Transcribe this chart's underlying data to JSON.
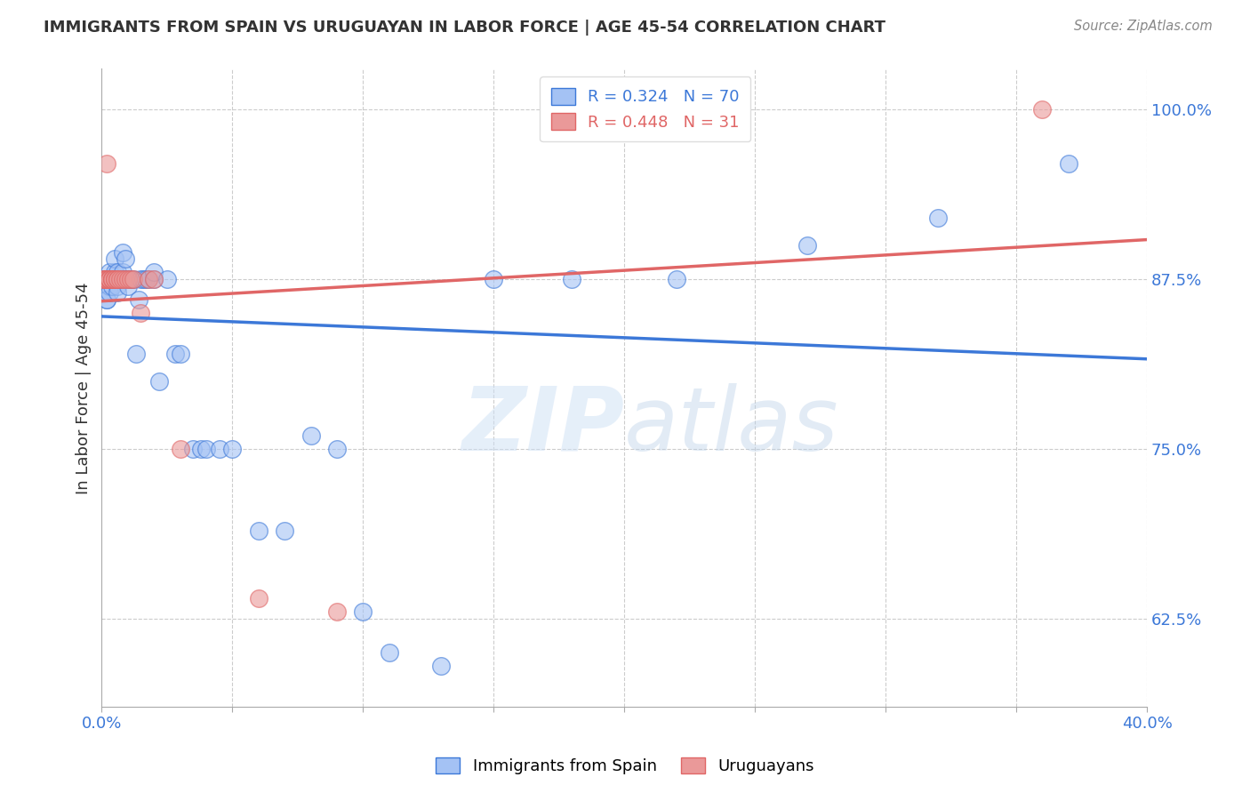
{
  "title": "IMMIGRANTS FROM SPAIN VS URUGUAYAN IN LABOR FORCE | AGE 45-54 CORRELATION CHART",
  "source": "Source: ZipAtlas.com",
  "ylabel": "In Labor Force | Age 45-54",
  "xlim": [
    0.0,
    0.4
  ],
  "ylim": [
    0.56,
    1.03
  ],
  "xticks": [
    0.0,
    0.05,
    0.1,
    0.15,
    0.2,
    0.25,
    0.3,
    0.35,
    0.4
  ],
  "xtick_labels": [
    "0.0%",
    "",
    "",
    "",
    "",
    "",
    "",
    "",
    "40.0%"
  ],
  "ytick_labels_right": [
    "100.0%",
    "87.5%",
    "75.0%",
    "62.5%"
  ],
  "yticks_right": [
    1.0,
    0.875,
    0.75,
    0.625
  ],
  "blue_color": "#a4c2f4",
  "pink_color": "#ea9999",
  "blue_line_color": "#3c78d8",
  "pink_line_color": "#e06666",
  "legend_R_blue": "R = 0.324",
  "legend_N_blue": "N = 70",
  "legend_R_pink": "R = 0.448",
  "legend_N_pink": "N = 31",
  "legend_label_blue": "Immigrants from Spain",
  "legend_label_pink": "Uruguayans",
  "blue_x": [
    0.001,
    0.001,
    0.001,
    0.001,
    0.002,
    0.002,
    0.002,
    0.002,
    0.002,
    0.002,
    0.003,
    0.003,
    0.003,
    0.003,
    0.003,
    0.003,
    0.004,
    0.004,
    0.004,
    0.004,
    0.005,
    0.005,
    0.005,
    0.005,
    0.006,
    0.006,
    0.006,
    0.006,
    0.007,
    0.007,
    0.007,
    0.008,
    0.008,
    0.008,
    0.009,
    0.009,
    0.01,
    0.01,
    0.011,
    0.012,
    0.013,
    0.014,
    0.015,
    0.016,
    0.017,
    0.018,
    0.02,
    0.02,
    0.022,
    0.025,
    0.028,
    0.03,
    0.035,
    0.038,
    0.04,
    0.045,
    0.05,
    0.06,
    0.07,
    0.08,
    0.09,
    0.1,
    0.11,
    0.13,
    0.15,
    0.18,
    0.22,
    0.27,
    0.32,
    0.37
  ],
  "blue_y": [
    0.875,
    0.875,
    0.875,
    0.875,
    0.875,
    0.875,
    0.875,
    0.875,
    0.86,
    0.86,
    0.875,
    0.875,
    0.875,
    0.87,
    0.865,
    0.88,
    0.875,
    0.875,
    0.875,
    0.87,
    0.875,
    0.88,
    0.89,
    0.875,
    0.875,
    0.88,
    0.87,
    0.865,
    0.875,
    0.875,
    0.875,
    0.88,
    0.895,
    0.875,
    0.89,
    0.875,
    0.875,
    0.87,
    0.875,
    0.875,
    0.82,
    0.86,
    0.875,
    0.875,
    0.875,
    0.875,
    0.875,
    0.88,
    0.8,
    0.875,
    0.82,
    0.82,
    0.75,
    0.75,
    0.75,
    0.75,
    0.75,
    0.69,
    0.69,
    0.76,
    0.75,
    0.63,
    0.6,
    0.59,
    0.875,
    0.875,
    0.875,
    0.9,
    0.92,
    0.96
  ],
  "pink_x": [
    0.001,
    0.001,
    0.001,
    0.002,
    0.002,
    0.002,
    0.002,
    0.003,
    0.003,
    0.003,
    0.003,
    0.004,
    0.004,
    0.004,
    0.005,
    0.005,
    0.006,
    0.006,
    0.007,
    0.008,
    0.009,
    0.01,
    0.011,
    0.012,
    0.015,
    0.018,
    0.02,
    0.03,
    0.06,
    0.09,
    0.36
  ],
  "pink_y": [
    0.875,
    0.875,
    0.875,
    0.96,
    0.875,
    0.875,
    0.875,
    0.875,
    0.875,
    0.875,
    0.875,
    0.875,
    0.875,
    0.875,
    0.875,
    0.875,
    0.875,
    0.875,
    0.875,
    0.875,
    0.875,
    0.875,
    0.875,
    0.875,
    0.85,
    0.875,
    0.875,
    0.75,
    0.64,
    0.63,
    1.0
  ],
  "watermark_zip": "ZIP",
  "watermark_atlas": "atlas",
  "background_color": "#ffffff",
  "grid_color": "#cccccc"
}
